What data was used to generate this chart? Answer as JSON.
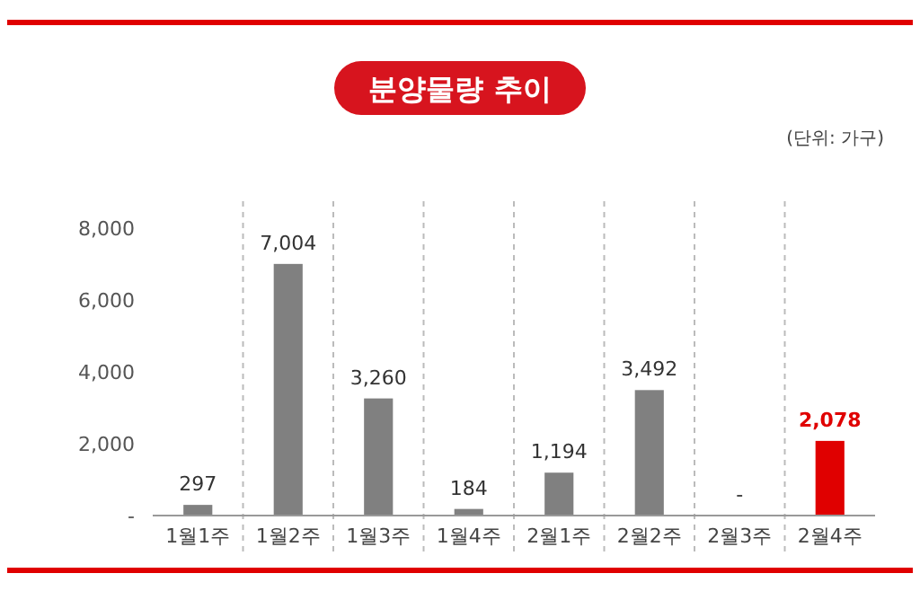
{
  "chart_data": {
    "type": "bar",
    "title": "분양물량 추이",
    "subtitle": "(단위: 가구)",
    "categories": [
      "1월1주",
      "1월2주",
      "1월3주",
      "1월4주",
      "2월1주",
      "2월2주",
      "2월3주",
      "2월4주"
    ],
    "values": [
      297,
      7004,
      3260,
      184,
      1194,
      3492,
      0,
      2078
    ],
    "value_labels": [
      "297",
      "7,004",
      "3,260",
      "184",
      "1,194",
      "3,492",
      "-",
      "2,078"
    ],
    "colors": [
      "#808080",
      "#808080",
      "#808080",
      "#808080",
      "#808080",
      "#808080",
      "#808080",
      "#e00000"
    ],
    "ylim": [
      0,
      8000
    ],
    "yticks": [
      {
        "value": 0,
        "label": "-"
      },
      {
        "value": 2000,
        "label": "2,000"
      },
      {
        "value": 4000,
        "label": "4,000"
      },
      {
        "value": 6000,
        "label": "6,000"
      },
      {
        "value": 8000,
        "label": "8,000"
      }
    ],
    "grid": "x"
  }
}
